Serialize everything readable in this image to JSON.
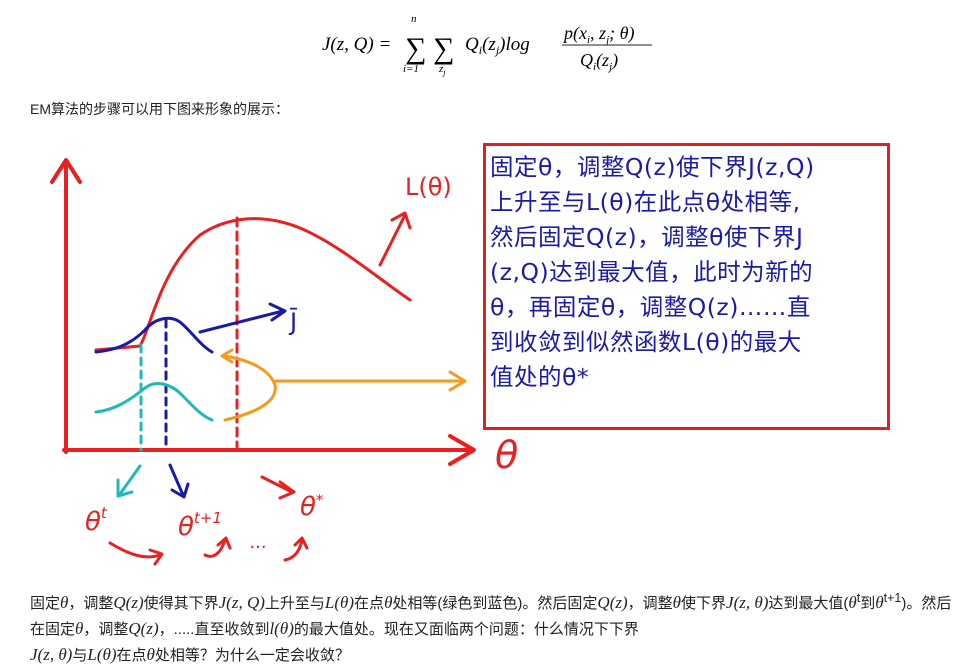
{
  "formula": {
    "lhs": "J(z, Q) =",
    "sum_upper": "n",
    "sum_lower_1": "i=1",
    "sum_lower_2": "z",
    "sum_lower_2_sub": "j",
    "term": "Q",
    "term_sub": "i",
    "term_arg": "(z",
    "term_arg_sub": "j",
    "term_arg_close": ")log",
    "numerator": "p(x",
    "numerator_sub_i": "i",
    "numerator_mid": ", z",
    "numerator_sub_j": "j",
    "numerator_end": "; θ)",
    "denominator": "Q",
    "denominator_sub": "i",
    "denominator_arg": "(z",
    "denominator_arg_sub": "j",
    "denominator_close": ")"
  },
  "intro_text": "EM算法的步骤可以用下图来形象的展示：",
  "figure": {
    "curve_label_L": "L(θ)",
    "curve_label_J": "J̄",
    "axis_label": "θ",
    "theta_t": "θ",
    "theta_t_sup": "t",
    "theta_t1": "θ",
    "theta_t1_sup": "t+1",
    "theta_star": "θ",
    "theta_star_sup": "*",
    "dots": "...",
    "colors": {
      "red": "#e82020",
      "blue": "#1a1aa8",
      "cyan": "#20b8b8",
      "orange": "#f59a1a"
    },
    "box_lines": [
      "固定θ，调整Q(z)使下界J(z,Q)",
      "上升至与L(θ)在此点θ处相等,",
      "然后固定Q(z)，调整θ使下界J",
      "(z,Q)达到最大值，此时为新的",
      "θ，再固定θ，调整Q(z)……直",
      "到收敛到似然函数L(θ)的最大",
      "值处的θ*"
    ]
  },
  "paragraph": {
    "s1": "固定",
    "m1": "θ",
    "s2": "，调整",
    "m2": "Q(z)",
    "s3": "使得其下界",
    "m3": "J(z, Q)",
    "s4": "上升至与",
    "m4": "L(θ)",
    "s5": "在点",
    "m5": "θ",
    "s6": "处相等(绿色到蓝色)。然后固定",
    "m6": "Q(z)",
    "s7": "，调整",
    "m7": "θ",
    "s8": "使下界",
    "m8": "J(z, θ)",
    "s9": "达到最大值(",
    "m9": "θ",
    "m9sup": "t",
    "s10": "到",
    "m10": "θ",
    "m10sup": "t+1",
    "s11": ")。然后在固定",
    "m11": "θ",
    "s12": "，调整",
    "m12": "Q(z)",
    "s13": "，.....直至收敛到",
    "m13": "l(θ)",
    "s14": "的最大值处。现在又面临两个问题：什么情况下下界",
    "m14": "J(z, θ)",
    "s15": "与",
    "m15": "L(θ)",
    "s16": "在点",
    "m16": "θ",
    "s17": "处相等？为什么一定会收敛？"
  }
}
